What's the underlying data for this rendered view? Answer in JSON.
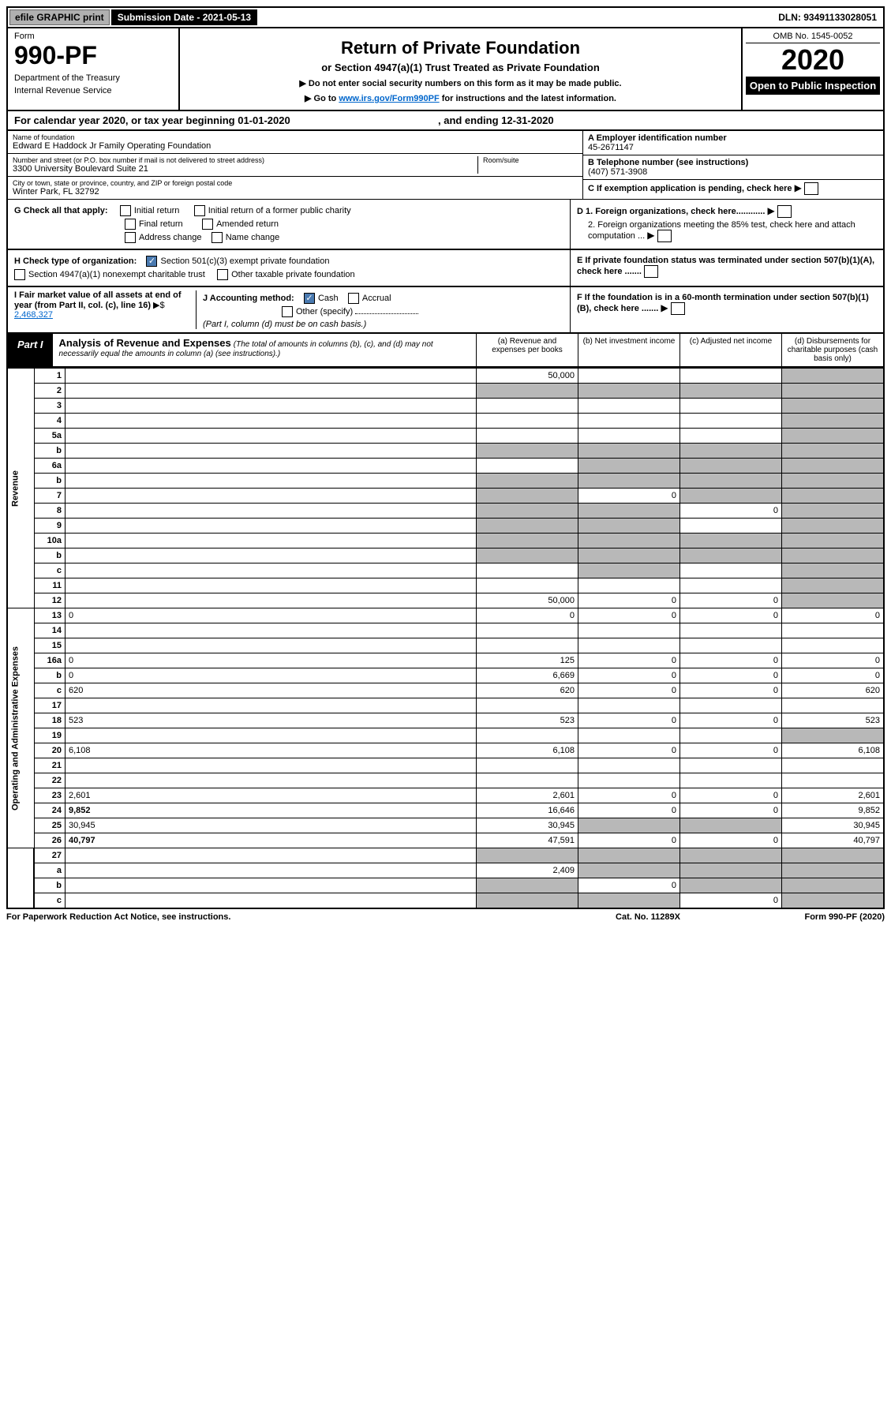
{
  "top_bar": {
    "efile": "efile GRAPHIC print",
    "submission": "Submission Date - 2021-05-13",
    "dln": "DLN: 93491133028051"
  },
  "header": {
    "form_label": "Form",
    "form_number": "990-PF",
    "dept": "Department of the Treasury",
    "irs": "Internal Revenue Service",
    "title": "Return of Private Foundation",
    "subtitle": "or Section 4947(a)(1) Trust Treated as Private Foundation",
    "note1": "▶ Do not enter social security numbers on this form as it may be made public.",
    "note2_pre": "▶ Go to ",
    "note2_link": "www.irs.gov/Form990PF",
    "note2_post": " for instructions and the latest information.",
    "omb": "OMB No. 1545-0052",
    "year": "2020",
    "open": "Open to Public Inspection"
  },
  "cal_year": "For calendar year 2020, or tax year beginning 01-01-2020",
  "cal_year_end": ", and ending 12-31-2020",
  "info": {
    "name_label": "Name of foundation",
    "name": "Edward E Haddock Jr Family Operating Foundation",
    "addr_label": "Number and street (or P.O. box number if mail is not delivered to street address)",
    "addr": "3300 University Boulevard Suite 21",
    "room_label": "Room/suite",
    "city_label": "City or town, state or province, country, and ZIP or foreign postal code",
    "city": "Winter Park, FL  32792",
    "ein_label": "A Employer identification number",
    "ein": "45-2671147",
    "phone_label": "B Telephone number (see instructions)",
    "phone": "(407) 571-3908",
    "c_label": "C If exemption application is pending, check here",
    "d1": "D 1. Foreign organizations, check here............",
    "d2": "2. Foreign organizations meeting the 85% test, check here and attach computation ...",
    "e": "E  If private foundation status was terminated under section 507(b)(1)(A), check here .......",
    "f": "F  If the foundation is in a 60-month termination under section 507(b)(1)(B), check here ......."
  },
  "checks": {
    "g_label": "G Check all that apply:",
    "initial": "Initial return",
    "initial_former": "Initial return of a former public charity",
    "final": "Final return",
    "amended": "Amended return",
    "addr_change": "Address change",
    "name_change": "Name change",
    "h_label": "H Check type of organization:",
    "sec501": "Section 501(c)(3) exempt private foundation",
    "sec4947": "Section 4947(a)(1) nonexempt charitable trust",
    "other_tax": "Other taxable private foundation",
    "i_label": "I Fair market value of all assets at end of year (from Part II, col. (c), line 16)",
    "i_value": "2,468,327",
    "j_label": "J Accounting method:",
    "cash": "Cash",
    "accrual": "Accrual",
    "other_spec": "Other (specify)",
    "j_note": "(Part I, column (d) must be on cash basis.)"
  },
  "part1": {
    "label": "Part I",
    "title": "Analysis of Revenue and Expenses",
    "sub": "(The total of amounts in columns (b), (c), and (d) may not necessarily equal the amounts in column (a) (see instructions).)",
    "col_a": "(a)   Revenue and expenses per books",
    "col_b": "(b)   Net investment income",
    "col_c": "(c)   Adjusted net income",
    "col_d": "(d)   Disbursements for charitable purposes (cash basis only)"
  },
  "sections": {
    "revenue": "Revenue",
    "expenses": "Operating and Administrative Expenses"
  },
  "rows": [
    {
      "n": "1",
      "d": "",
      "a": "50,000",
      "b": "",
      "c": "",
      "shade": [
        "d"
      ]
    },
    {
      "n": "2",
      "d": "",
      "a": "",
      "b": "",
      "c": "",
      "shade": [
        "a",
        "b",
        "c",
        "d"
      ],
      "allshade": true
    },
    {
      "n": "3",
      "d": "",
      "a": "",
      "b": "",
      "c": "",
      "shade": [
        "d"
      ]
    },
    {
      "n": "4",
      "d": "",
      "a": "",
      "b": "",
      "c": "",
      "shade": [
        "d"
      ]
    },
    {
      "n": "5a",
      "d": "",
      "a": "",
      "b": "",
      "c": "",
      "shade": [
        "d"
      ]
    },
    {
      "n": "b",
      "d": "",
      "a": "",
      "b": "",
      "c": "",
      "shade": [
        "a",
        "b",
        "c",
        "d"
      ]
    },
    {
      "n": "6a",
      "d": "",
      "a": "",
      "b": "",
      "c": "",
      "shade": [
        "b",
        "c",
        "d"
      ]
    },
    {
      "n": "b",
      "d": "",
      "a": "",
      "b": "",
      "c": "",
      "shade": [
        "a",
        "b",
        "c",
        "d"
      ]
    },
    {
      "n": "7",
      "d": "",
      "a": "",
      "b": "0",
      "c": "",
      "shade": [
        "a",
        "c",
        "d"
      ]
    },
    {
      "n": "8",
      "d": "",
      "a": "",
      "b": "",
      "c": "0",
      "shade": [
        "a",
        "b",
        "d"
      ]
    },
    {
      "n": "9",
      "d": "",
      "a": "",
      "b": "",
      "c": "",
      "shade": [
        "a",
        "b",
        "d"
      ]
    },
    {
      "n": "10a",
      "d": "",
      "a": "",
      "b": "",
      "c": "",
      "shade": [
        "a",
        "b",
        "c",
        "d"
      ]
    },
    {
      "n": "b",
      "d": "",
      "a": "",
      "b": "",
      "c": "",
      "shade": [
        "a",
        "b",
        "c",
        "d"
      ]
    },
    {
      "n": "c",
      "d": "",
      "a": "",
      "b": "",
      "c": "",
      "shade": [
        "b",
        "d"
      ]
    },
    {
      "n": "11",
      "d": "",
      "a": "",
      "b": "",
      "c": "",
      "shade": [
        "d"
      ]
    },
    {
      "n": "12",
      "d": "",
      "a": "50,000",
      "b": "0",
      "c": "0",
      "shade": [
        "d"
      ],
      "bold": true
    }
  ],
  "exp_rows": [
    {
      "n": "13",
      "d": "0",
      "a": "0",
      "b": "0",
      "c": "0"
    },
    {
      "n": "14",
      "d": "",
      "a": "",
      "b": "",
      "c": ""
    },
    {
      "n": "15",
      "d": "",
      "a": "",
      "b": "",
      "c": ""
    },
    {
      "n": "16a",
      "d": "0",
      "a": "125",
      "b": "0",
      "c": "0"
    },
    {
      "n": "b",
      "d": "0",
      "a": "6,669",
      "b": "0",
      "c": "0"
    },
    {
      "n": "c",
      "d": "620",
      "a": "620",
      "b": "0",
      "c": "0"
    },
    {
      "n": "17",
      "d": "",
      "a": "",
      "b": "",
      "c": ""
    },
    {
      "n": "18",
      "d": "523",
      "a": "523",
      "b": "0",
      "c": "0"
    },
    {
      "n": "19",
      "d": "",
      "a": "",
      "b": "",
      "c": "",
      "shade": [
        "d"
      ]
    },
    {
      "n": "20",
      "d": "6,108",
      "a": "6,108",
      "b": "0",
      "c": "0"
    },
    {
      "n": "21",
      "d": "",
      "a": "",
      "b": "",
      "c": ""
    },
    {
      "n": "22",
      "d": "",
      "a": "",
      "b": "",
      "c": ""
    },
    {
      "n": "23",
      "d": "2,601",
      "a": "2,601",
      "b": "0",
      "c": "0"
    },
    {
      "n": "24",
      "d": "9,852",
      "a": "16,646",
      "b": "0",
      "c": "0",
      "bold": true
    },
    {
      "n": "25",
      "d": "30,945",
      "a": "30,945",
      "b": "",
      "c": "",
      "shade": [
        "b",
        "c"
      ]
    },
    {
      "n": "26",
      "d": "40,797",
      "a": "47,591",
      "b": "0",
      "c": "0",
      "bold": true
    }
  ],
  "final_rows": [
    {
      "n": "27",
      "d": "",
      "a": "",
      "b": "",
      "c": "",
      "shade": [
        "a",
        "b",
        "c",
        "d"
      ]
    },
    {
      "n": "a",
      "d": "",
      "a": "2,409",
      "b": "",
      "c": "",
      "shade": [
        "b",
        "c",
        "d"
      ],
      "bold": true
    },
    {
      "n": "b",
      "d": "",
      "a": "",
      "b": "0",
      "c": "",
      "shade": [
        "a",
        "c",
        "d"
      ],
      "bold": true
    },
    {
      "n": "c",
      "d": "",
      "a": "",
      "b": "",
      "c": "0",
      "shade": [
        "a",
        "b",
        "d"
      ],
      "bold": true
    }
  ],
  "footer": {
    "left": "For Paperwork Reduction Act Notice, see instructions.",
    "mid": "Cat. No. 11289X",
    "right": "Form 990-PF (2020)"
  }
}
